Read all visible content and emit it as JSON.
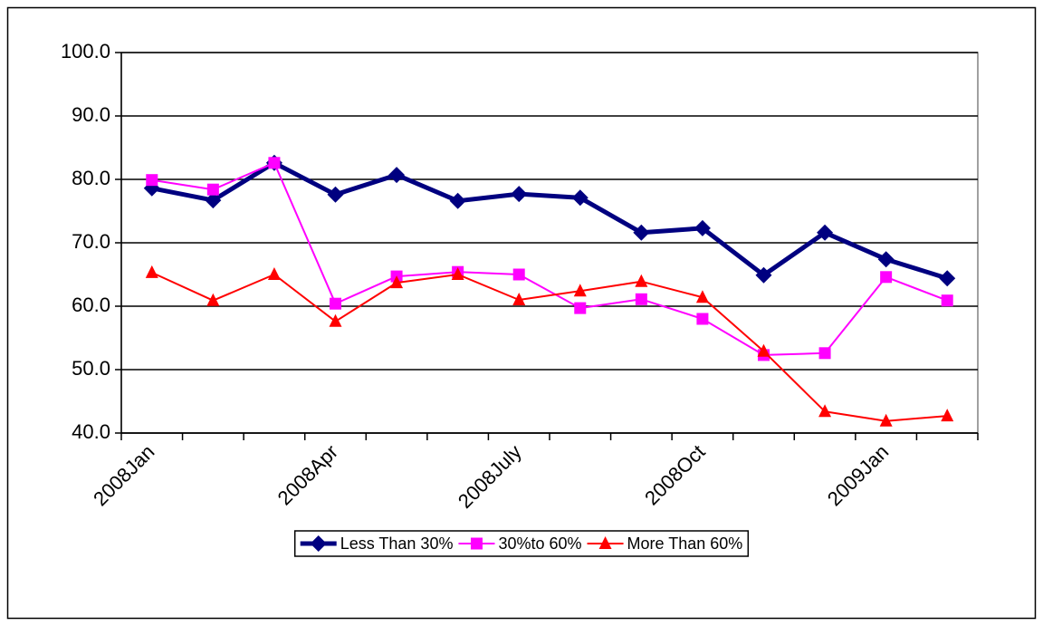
{
  "chart_data": {
    "type": "line",
    "categories": [
      "2008Jan",
      null,
      null,
      "2008Apr",
      null,
      null,
      "2008July",
      null,
      null,
      "2008Oct",
      null,
      null,
      "2009Jan",
      null
    ],
    "series": [
      {
        "name": "Less Than 30%",
        "color": "#000080",
        "marker": "diamond",
        "values": [
          78.6,
          76.7,
          82.6,
          77.6,
          80.7,
          76.6,
          77.7,
          77.1,
          71.6,
          72.3,
          64.9,
          71.6,
          67.4,
          64.4
        ]
      },
      {
        "name": "30%to 60%",
        "color": "#ff00ff",
        "marker": "square",
        "values": [
          79.9,
          78.4,
          82.6,
          60.4,
          64.7,
          65.4,
          65.0,
          59.7,
          61.1,
          58.0,
          52.3,
          52.6,
          64.6,
          60.9
        ]
      },
      {
        "name": "More Than 60%",
        "color": "#ff0000",
        "marker": "triangle",
        "values": [
          65.3,
          60.9,
          65.0,
          57.6,
          63.7,
          65.0,
          61.0,
          62.4,
          63.9,
          61.4,
          52.9,
          43.4,
          41.9,
          42.7
        ]
      }
    ],
    "ylim": [
      40,
      100
    ],
    "yticks": [
      {
        "value": 40,
        "label": "40.0"
      },
      {
        "value": 50,
        "label": "50.0"
      },
      {
        "value": 60,
        "label": "60.0"
      },
      {
        "value": 70,
        "label": "70.0"
      },
      {
        "value": 80,
        "label": "80.0"
      },
      {
        "value": 90,
        "label": "90.0"
      },
      {
        "value": 100,
        "label": "100.0"
      }
    ],
    "grid": true,
    "legend": "bottom"
  }
}
